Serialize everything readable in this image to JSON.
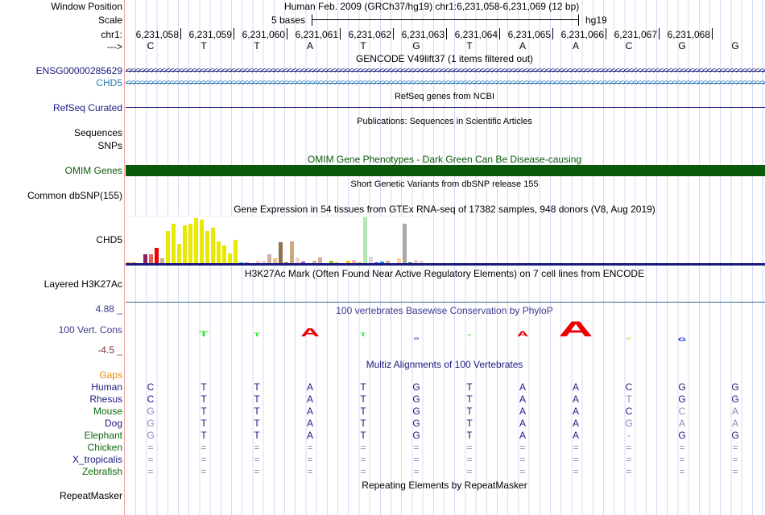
{
  "labels": {
    "window_position": "Window Position",
    "scale": "Scale",
    "chrom": "chr1:",
    "strand": "--->",
    "ensg": "ENSG00000285629",
    "chd5": "CHD5",
    "refseq": "RefSeq Curated",
    "sequences": "Sequences",
    "snps": "SNPs",
    "omim": "OMIM Genes",
    "dbsnp": "Common dbSNP(155)",
    "gtex": "CHD5",
    "h3k27ac": "Layered H3K27Ac",
    "cons": "100 Vert. Cons",
    "cons_max": "4.88 _",
    "cons_min": "-4.5 _",
    "gaps": "Gaps",
    "repeatmasker": "RepeatMasker"
  },
  "header": {
    "assembly": "Human Feb. 2009 (GRCh37/hg19)   chr1:6,231,058-6,231,069 (12 bp)",
    "scale_text": "5 bases",
    "scale_db": "hg19"
  },
  "positions": [
    "6,231,058",
    "6,231,059",
    "6,231,060",
    "6,231,061",
    "6,231,062",
    "6,231,063",
    "6,231,064",
    "6,231,065",
    "6,231,066",
    "6,231,067",
    "6,231,068"
  ],
  "bases": [
    "C",
    "T",
    "T",
    "A",
    "T",
    "G",
    "T",
    "A",
    "A",
    "C",
    "G",
    "G"
  ],
  "titles": {
    "gencode": "GENCODE V49lift37 (1 items filtered out)",
    "refseq": "RefSeq genes from NCBI",
    "publications": "Publications: Sequences in Scientific Articles",
    "omim": "OMIM Gene Phenotypes - Dark Green Can Be Disease-causing",
    "dbsnp": "Short Genetic Variants from dbSNP release 155",
    "gtex": "Gene Expression in 54 tissues from GTEx RNA-seq of 17382 samples, 948 donors (V8, Aug 2019)",
    "h3k27ac": "H3K27Ac Mark (Often Found Near Active Regulatory Elements) on 7 cell lines from ENCODE",
    "phylop": "100 vertebrates Basewise Conservation by PhyloP",
    "multiz": "Multiz Alignments of 100 Vertebrates",
    "repeatmasker": "Repeating Elements by RepeatMasker"
  },
  "colors": {
    "ensg": "#1a1a80",
    "chd5": "#2a7ab8",
    "omim": "#0b5a0b",
    "multiz": "#1a1a80",
    "gaps": "#e88a10",
    "bg_grid": "#d8d8f4"
  },
  "gtex_values": [
    0.03,
    0.03,
    0.02,
    0.21,
    0.21,
    0.34,
    0.12,
    0.7,
    0.86,
    0.43,
    0.82,
    0.86,
    0.98,
    0.94,
    0.7,
    0.77,
    0.48,
    0.4,
    0.23,
    0.51,
    0.03,
    0.03,
    0.01,
    0.07,
    0.07,
    0.21,
    0.12,
    0.46,
    0.03,
    0.48,
    0.14,
    0.05,
    0.01,
    0.07,
    0.14,
    0.01,
    0.07,
    0.03,
    0.02,
    0.07,
    0.09,
    0.03,
    1.0,
    0.15,
    0.03,
    0.05,
    0.07,
    0.02,
    0.12,
    0.86,
    0.03,
    0.09,
    0.07,
    0.01
  ],
  "gtex_colors": [
    "#f4a040",
    "#f09020",
    "#70b080",
    "#882060",
    "#e86050",
    "#f00000",
    "#c8b090",
    "#e8e800",
    "#e8e800",
    "#e8e800",
    "#e8e800",
    "#e8e800",
    "#e8e800",
    "#e8e800",
    "#e8e800",
    "#e8e800",
    "#e8e800",
    "#e8e800",
    "#e8e800",
    "#e8e800",
    "#10c0d0",
    "#e070f0",
    "#c0c0c0",
    "#f0d0d0",
    "#f0d0d0",
    "#d0b0a0",
    "#f0c080",
    "#907050",
    "#906040",
    "#d0a880",
    "#f0d0d0",
    "#b040d0",
    "#d0d0d0",
    "#d0b0a0",
    "#d0b0a0",
    "#c0c0c0",
    "#90d020",
    "#d0b0a0",
    "#5050e0",
    "#ffc000",
    "#ffb0c0",
    "#d0a020",
    "#b0e8b0",
    "#d8d8d8",
    "#3050d0",
    "#1090f0",
    "#d0b0a0",
    "#d0b0a0",
    "#ffd0a0",
    "#a8a8a8",
    "#108040",
    "#f0d0d0",
    "#f0d0d0",
    "#d0d0d0"
  ],
  "phylop": [
    {
      "base": "T",
      "score": 0.3,
      "color": "#22ee22"
    },
    {
      "base": "T",
      "score": 0.2,
      "color": "#22ee22"
    },
    {
      "base": "A",
      "score": 0.5,
      "color": "#ee0000"
    },
    {
      "base": "T",
      "score": 0.2,
      "color": "#22ee22"
    },
    {
      "base": "G",
      "score": -0.1,
      "color": "#2030e0"
    },
    {
      "base": "T",
      "score": 0.1,
      "color": "#22ee22"
    },
    {
      "base": "A",
      "score": 0.3,
      "color": "#ee0000"
    },
    {
      "base": "A",
      "score": 0.9,
      "color": "#ee0000"
    },
    {
      "base": "C",
      "score": -0.1,
      "color": "#c8b820"
    },
    {
      "base": "G",
      "score": -0.2,
      "color": "#2030e0"
    }
  ],
  "multiz": [
    {
      "species": "Human",
      "color": "#1a1a80",
      "seq": [
        "C",
        "T",
        "T",
        "A",
        "T",
        "G",
        "T",
        "A",
        "A",
        "C",
        "G",
        "G"
      ],
      "faint": []
    },
    {
      "species": "Rhesus",
      "color": "#1a1a80",
      "seq": [
        "C",
        "T",
        "T",
        "A",
        "T",
        "G",
        "T",
        "A",
        "A",
        "T",
        "G",
        "G"
      ],
      "faint": [
        9
      ]
    },
    {
      "species": "Mouse",
      "color": "#0b6a0b",
      "seq": [
        "G",
        "T",
        "T",
        "A",
        "T",
        "G",
        "T",
        "A",
        "A",
        "C",
        "C",
        "A"
      ],
      "faint": [
        0,
        10,
        11
      ]
    },
    {
      "species": "Dog",
      "color": "#1a1a80",
      "seq": [
        "G",
        "T",
        "T",
        "A",
        "T",
        "G",
        "T",
        "A",
        "A",
        "G",
        "A",
        "A"
      ],
      "faint": [
        0,
        9,
        10,
        11
      ]
    },
    {
      "species": "Elephant",
      "color": "#0b6a0b",
      "seq": [
        "G",
        "T",
        "T",
        "A",
        "T",
        "G",
        "T",
        "A",
        "A",
        "-",
        "G",
        "G"
      ],
      "faint": [
        0,
        9
      ]
    },
    {
      "species": "Chicken",
      "color": "#0b6a0b",
      "seq": [
        "=",
        "=",
        "=",
        "=",
        "=",
        "=",
        "=",
        "=",
        "=",
        "=",
        "=",
        "="
      ],
      "faint": [
        0,
        1,
        2,
        3,
        4,
        5,
        6,
        7,
        8,
        9,
        10,
        11
      ]
    },
    {
      "species": "X_tropicalis",
      "color": "#1a1a80",
      "seq": [
        "=",
        "=",
        "=",
        "=",
        "=",
        "=",
        "=",
        "=",
        "=",
        "=",
        "=",
        "="
      ],
      "faint": [
        0,
        1,
        2,
        3,
        4,
        5,
        6,
        7,
        8,
        9,
        10,
        11
      ]
    },
    {
      "species": "Zebrafish",
      "color": "#0b6a0b",
      "seq": [
        "=",
        "=",
        "=",
        "=",
        "=",
        "=",
        "=",
        "=",
        "=",
        "=",
        "=",
        "="
      ],
      "faint": [
        0,
        1,
        2,
        3,
        4,
        5,
        6,
        7,
        8,
        9,
        10,
        11
      ]
    }
  ]
}
